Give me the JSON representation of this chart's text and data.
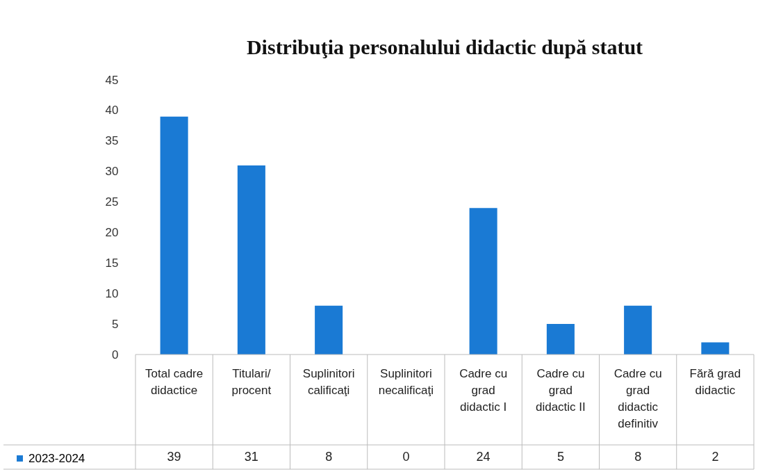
{
  "chart_data": {
    "type": "bar",
    "title": "Distribuţia personalului didactic după statut",
    "categories": [
      "Total cadre didactice",
      "Titulari/ procent",
      "Suplinitori calificaţi",
      "Suplinitori necalificaţi",
      "Cadre cu grad didactic I",
      "Cadre cu grad didactic II",
      "Cadre cu grad didactic definitiv",
      "Fără grad didactic"
    ],
    "series": [
      {
        "name": "2023-2024",
        "color": "#1a7ad4",
        "values": [
          39,
          31,
          8,
          0,
          24,
          5,
          8,
          2
        ]
      }
    ],
    "ylim": [
      0,
      45
    ],
    "yticks": [
      0,
      5,
      10,
      15,
      20,
      25,
      30,
      35,
      40,
      45
    ],
    "grid": false,
    "legend": "bottom left",
    "data_labels": true
  }
}
